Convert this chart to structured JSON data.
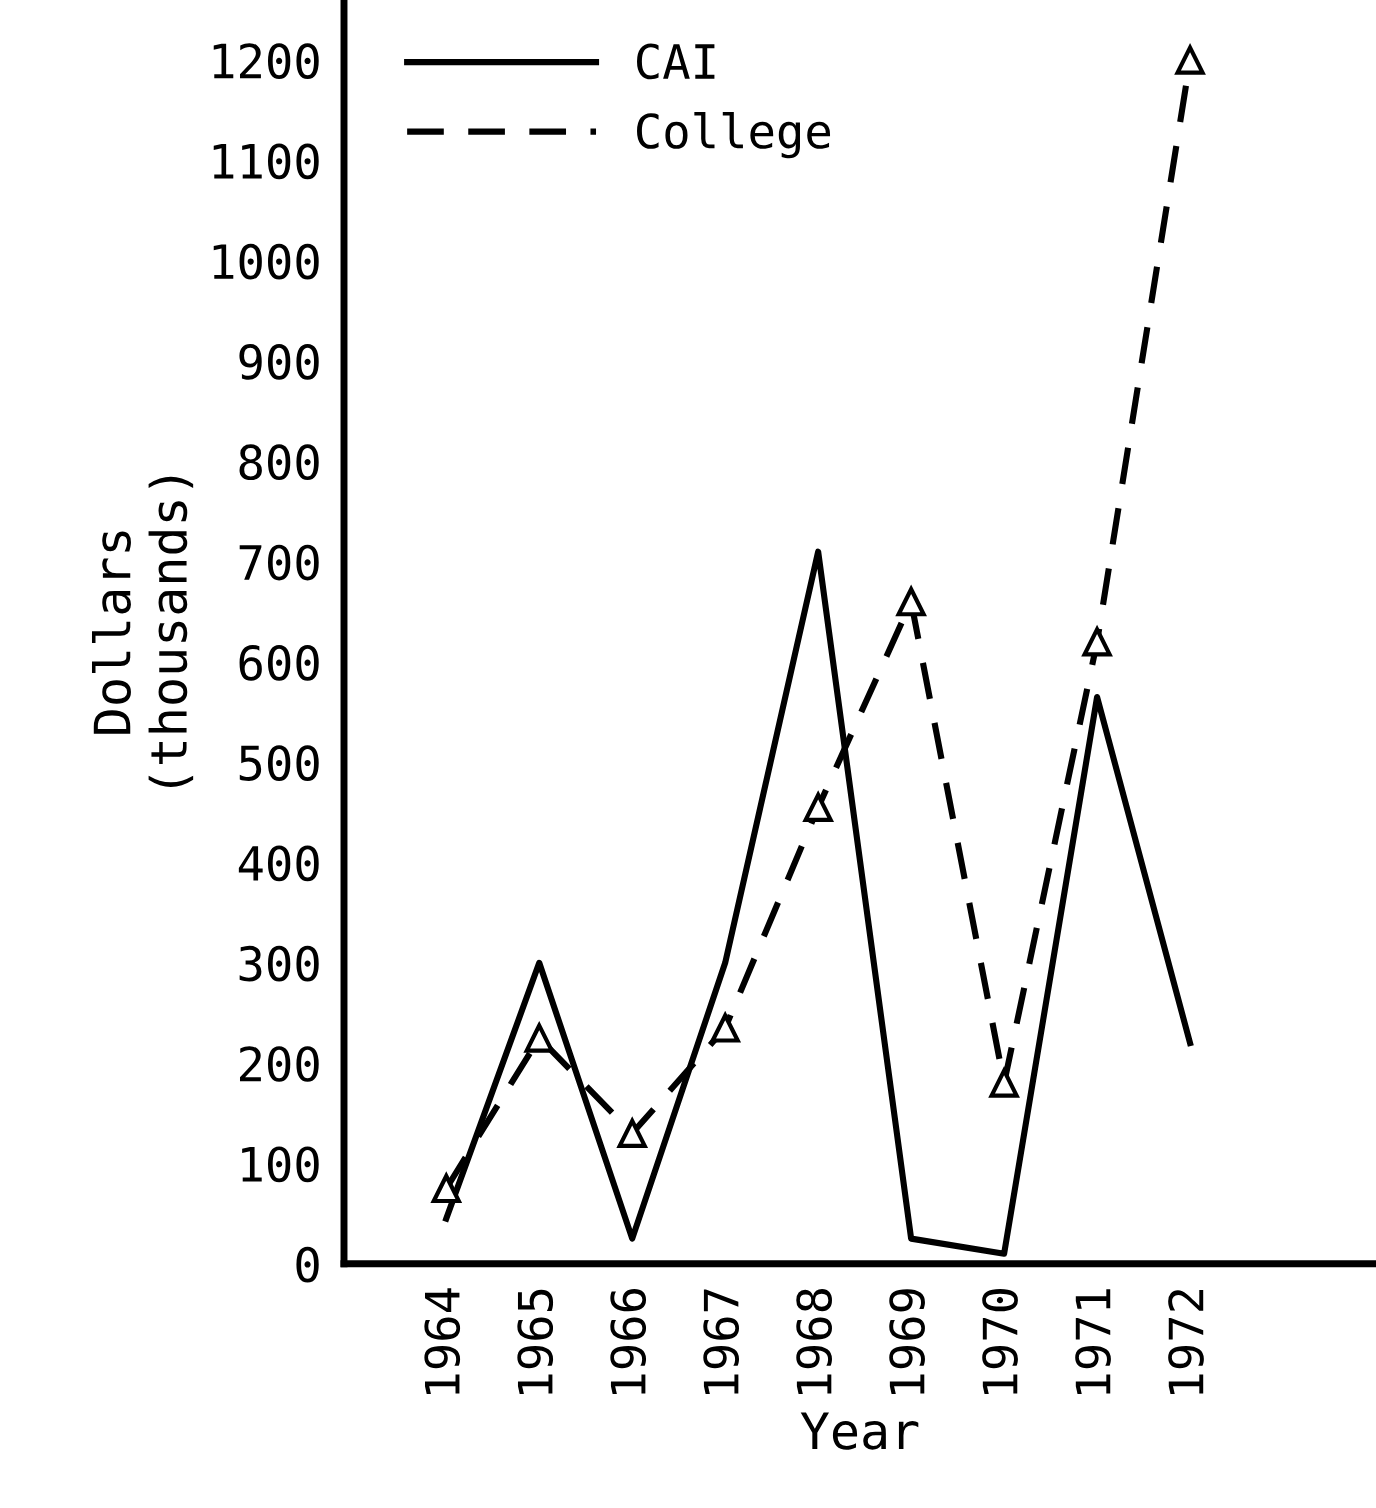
{
  "chart_data": {
    "type": "line",
    "xlabel": "Year",
    "ylabel": "Dollars\n(thousands)",
    "x": [
      1964,
      1965,
      1966,
      1967,
      1968,
      1969,
      1970,
      1971,
      1972
    ],
    "xlim": [
      1962.9,
      1974
    ],
    "xticks": [
      1964,
      1965,
      1966,
      1967,
      1968,
      1969,
      1970,
      1971,
      1972
    ],
    "ylim": [
      0,
      1260
    ],
    "yticks": [
      0,
      100,
      200,
      300,
      400,
      500,
      600,
      700,
      800,
      900,
      1000,
      1100,
      1200
    ],
    "grid": false,
    "legend": "top left",
    "series": [
      {
        "name": "CAI",
        "color": "#000000",
        "line_style": "solid",
        "marker": "none",
        "values": [
          45,
          300,
          25,
          300,
          710,
          25,
          10,
          565,
          220
        ]
      },
      {
        "name": "College",
        "color": "#000000",
        "line_style": "dashed",
        "marker": "triangle",
        "values": [
          75,
          225,
          130,
          235,
          455,
          660,
          180,
          620,
          1200
        ]
      }
    ]
  }
}
